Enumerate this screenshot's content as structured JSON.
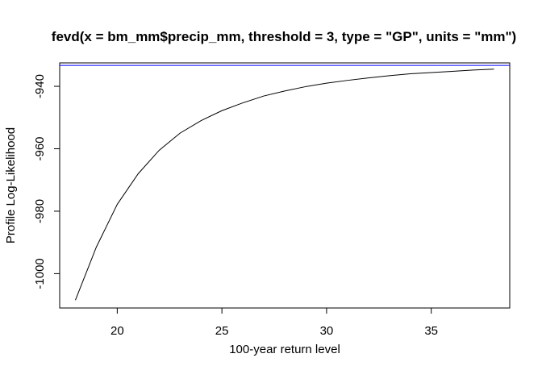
{
  "chart_data": {
    "type": "line",
    "title": "fevd(x = bm_mm$precip_mm, threshold = 3, type = \"GP\", units = \"mm\")",
    "xlabel": "100-year return level",
    "ylabel": "Profile Log-Likelihood",
    "xlim": [
      17.25,
      38.75
    ],
    "ylim": [
      -1011,
      -932.5
    ],
    "xticks": [
      20,
      25,
      30,
      35
    ],
    "yticks": [
      -940,
      -960,
      -980,
      -1000
    ],
    "grid": false,
    "legend": "none",
    "series": [
      {
        "color": "#000000",
        "x": [
          18,
          18.5,
          19,
          20,
          21,
          22,
          23,
          24,
          25,
          26,
          27,
          28,
          29,
          30,
          31,
          32,
          33,
          34,
          35,
          36,
          37,
          38
        ],
        "y": [
          -1008.5,
          -1000,
          -991.5,
          -977.8,
          -968,
          -960.5,
          -955,
          -951,
          -947.8,
          -945.3,
          -943.1,
          -941.5,
          -940.1,
          -939,
          -938.1,
          -937.3,
          -936.6,
          -936,
          -935.6,
          -935.2,
          -934.8,
          -934.5
        ]
      }
    ],
    "reference_line": {
      "y": -933.3,
      "color": "#0000ff"
    }
  }
}
